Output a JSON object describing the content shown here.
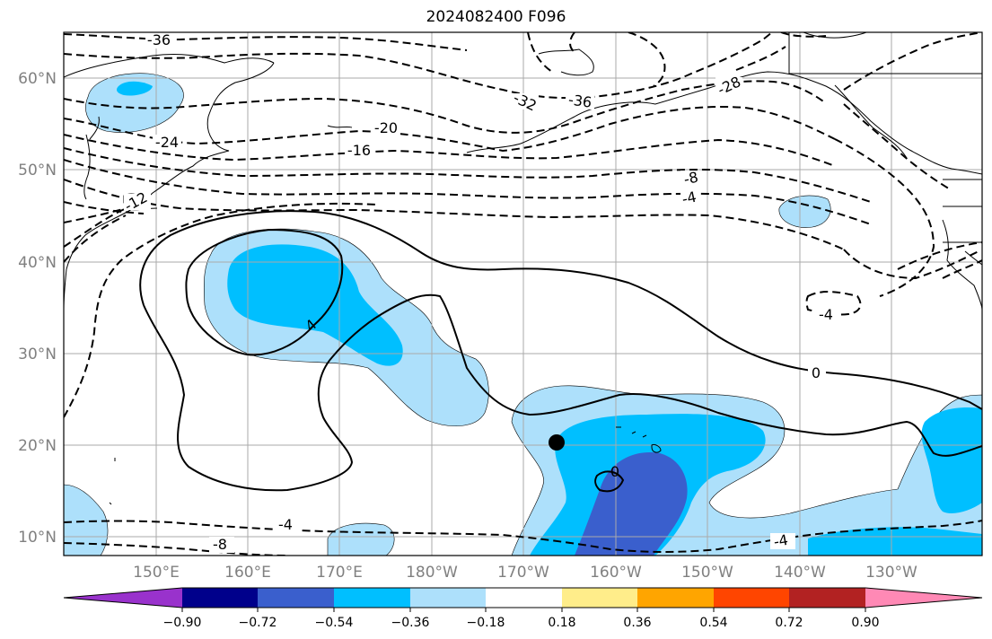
{
  "title": "2024082400 F096",
  "colors": {
    "shade_light": "#ade0fb",
    "shade_medium": "#00bfff",
    "shade_dark": "#3a5fcd",
    "contour": "#000000",
    "grid": "#aaaaaa",
    "coast": "#000000"
  },
  "map": {
    "lon_range": [
      "140°E",
      "115°W"
    ],
    "lat_range": [
      "8°N",
      "65°N"
    ],
    "lon_ticks": [
      "150°E",
      "160°E",
      "170°E",
      "180°W",
      "170°W",
      "160°W",
      "150°W",
      "140°W",
      "130°W"
    ],
    "lat_ticks": [
      "60°N",
      "50°N",
      "40°N",
      "30°N",
      "20°N",
      "10°N"
    ],
    "contour_labels": [
      {
        "id": "m36a",
        "text": "-36"
      },
      {
        "id": "m36b",
        "text": "-36"
      },
      {
        "id": "m32",
        "text": "-32"
      },
      {
        "id": "m28",
        "text": "-28"
      },
      {
        "id": "m24",
        "text": "-24"
      },
      {
        "id": "m20",
        "text": "-20"
      },
      {
        "id": "m16",
        "text": "-16"
      },
      {
        "id": "m12",
        "text": "-12"
      },
      {
        "id": "m8a",
        "text": "-8"
      },
      {
        "id": "m4a",
        "text": "-4"
      },
      {
        "id": "m4b",
        "text": "-4"
      },
      {
        "id": "m4c",
        "text": "-4"
      },
      {
        "id": "m4d",
        "text": "-4"
      },
      {
        "id": "m8b",
        "text": "-8"
      },
      {
        "id": "z0a",
        "text": "0"
      },
      {
        "id": "z0b",
        "text": "0"
      },
      {
        "id": "p4",
        "text": "4"
      }
    ],
    "marker": {
      "name": "location-dot",
      "lat": 20.3,
      "lon": "166°W"
    }
  },
  "colorbar": {
    "extend": "both",
    "colors": [
      "#9932cc",
      "#00008b",
      "#3a5fcd",
      "#00bfff",
      "#ade0fb",
      "#ffffff",
      "#ffed8a",
      "#ffa500",
      "#ff4500",
      "#b22222",
      "#ff89b5"
    ],
    "tick_labels": [
      "−0.90",
      "−0.72",
      "−0.54",
      "−0.36",
      "−0.18",
      "0.18",
      "0.36",
      "0.54",
      "0.72",
      "0.90"
    ]
  }
}
